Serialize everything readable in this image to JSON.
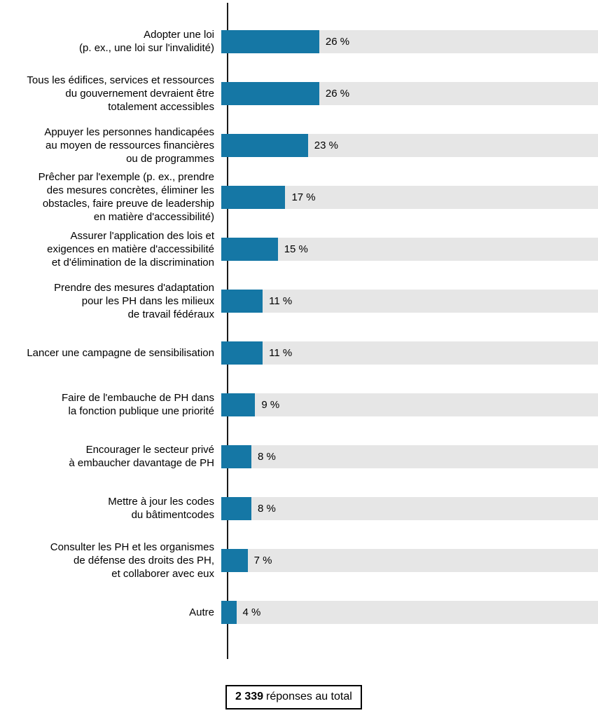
{
  "chart_data": {
    "type": "bar",
    "orientation": "horizontal",
    "title": "",
    "xlabel": "",
    "ylabel": "",
    "xlim": [
      0,
      100
    ],
    "grid": false,
    "legend": false,
    "bar_color": "#1577a5",
    "track_color": "#e6e6e6",
    "categories": [
      "Adopter une loi\n(p. ex., une loi sur l'invalidité)",
      "Tous les édifices, services et ressources\ndu gouvernement devraient être\ntotalement accessibles",
      "Appuyer les personnes handicapées\nau moyen de ressources financières\nou de programmes",
      "Prêcher par l'exemple (p. ex., prendre\ndes mesures concrètes, éliminer les\nobstacles, faire preuve de leadership\nen matière d'accessibilité)",
      "Assurer l'application des lois et\nexigences en matière d'accessibilité\net d'élimination de la discrimination",
      "Prendre des mesures d'adaptation\npour les PH dans les milieux\nde travail fédéraux",
      "Lancer une campagne de sensibilisation",
      "Faire de l'embauche de PH dans\nla fonction publique une priorité",
      "Encourager le secteur privé\nà embaucher davantage de PH",
      "Mettre à jour les codes\ndu bâtimentcodes",
      "Consulter les PH et les organismes\nde défense des droits des PH,\net collaborer avec eux",
      "Autre"
    ],
    "values": [
      26,
      26,
      23,
      17,
      15,
      11,
      11,
      9,
      8,
      8,
      7,
      4
    ],
    "value_labels": [
      "26 %",
      "26 %",
      "23 %",
      "17 %",
      "15 %",
      "11 %",
      "11 %",
      "9 %",
      "8 %",
      "8 %",
      "7 %",
      "4 %"
    ]
  },
  "footer": {
    "total_value": "2 339",
    "total_label": "réponses au total"
  }
}
